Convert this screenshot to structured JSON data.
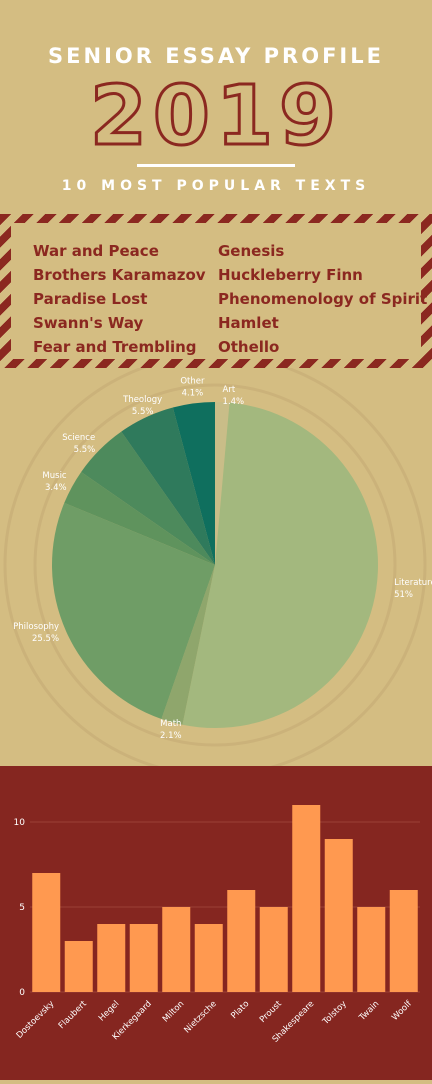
{
  "header": {
    "title": "SENIOR ESSAY PROFILE",
    "year": "2019",
    "subtitle": "10 MOST POPULAR TEXTS"
  },
  "popular_texts": {
    "left": [
      "War and Peace",
      "Brothers Karamazov",
      "Paradise Lost",
      "Swann's Way",
      "Fear and Trembling"
    ],
    "right": [
      "Genesis",
      "Huckleberry Finn",
      "Phenomenology of Spirit",
      "Hamlet",
      "Othello"
    ]
  },
  "colors": {
    "background": "#d4bd82",
    "accent": "#8b2820",
    "bar_panel": "#852620",
    "bar_fill": "#ff9950"
  },
  "chart_data": [
    {
      "type": "pie",
      "slices": [
        {
          "label": "Art",
          "value": 1.4,
          "color": "#c9bd88"
        },
        {
          "label": "Literature",
          "value": 51,
          "color": "#a3b87e"
        },
        {
          "label": "Math",
          "value": 2.1,
          "color": "#8fa66c"
        },
        {
          "label": "Philosophy",
          "value": 25.5,
          "color": "#6f9d66"
        },
        {
          "label": "Music",
          "value": 3.4,
          "color": "#5f935d"
        },
        {
          "label": "Science",
          "value": 5.5,
          "color": "#4d8a5c"
        },
        {
          "label": "Theology",
          "value": 5.5,
          "color": "#2f7a5c"
        },
        {
          "label": "Other",
          "value": 4.1,
          "color": "#0f6f5e"
        }
      ],
      "value_suffix": "%"
    },
    {
      "type": "bar",
      "categories": [
        "Dostoevsky",
        "Flaubert",
        "Hegel",
        "Kierkegaard",
        "Milton",
        "Nietzsche",
        "Plato",
        "Proust",
        "Shakespeare",
        "Tolstoy",
        "Twain",
        "Woolf"
      ],
      "values": [
        7,
        3,
        4,
        4,
        5,
        4,
        6,
        5,
        11,
        9,
        5,
        6
      ],
      "ylim": [
        0,
        12
      ],
      "yticks": [
        0,
        5,
        10
      ],
      "grid": true
    }
  ]
}
